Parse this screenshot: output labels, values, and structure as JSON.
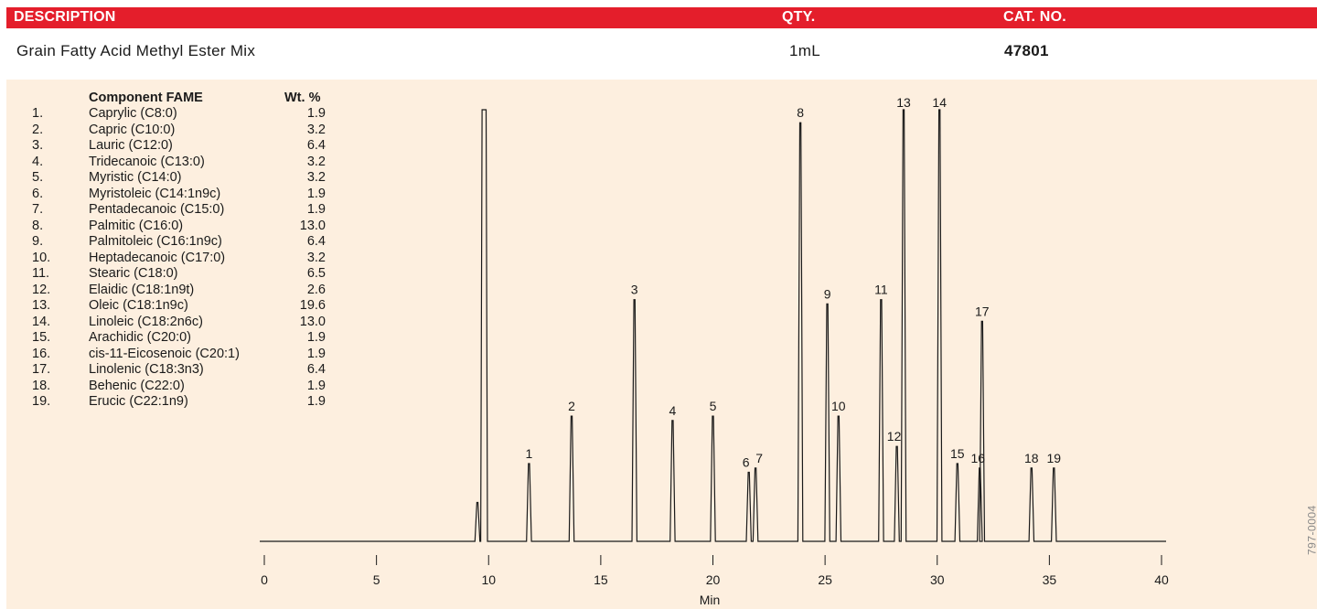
{
  "header": {
    "description_label": "DESCRIPTION",
    "qty_label": "QTY.",
    "cat_label": "CAT. NO.",
    "bg_color": "#e41e2b"
  },
  "product": {
    "description": "Grain Fatty Acid Methyl Ester Mix",
    "qty": "1mL",
    "cat_no": "47801"
  },
  "components_table": {
    "col_name": "Component FAME",
    "col_wt": "Wt. %",
    "rows": [
      {
        "num": "1.",
        "name": "Caprylic (C8:0)",
        "wt": "1.9"
      },
      {
        "num": "2.",
        "name": "Capric (C10:0)",
        "wt": "3.2"
      },
      {
        "num": "3.",
        "name": "Lauric (C12:0)",
        "wt": "6.4"
      },
      {
        "num": "4.",
        "name": "Tridecanoic (C13:0)",
        "wt": "3.2"
      },
      {
        "num": "5.",
        "name": "Myristic (C14:0)",
        "wt": "3.2"
      },
      {
        "num": "6.",
        "name": "Myristoleic (C14:1n9c)",
        "wt": "1.9"
      },
      {
        "num": "7.",
        "name": "Pentadecanoic (C15:0)",
        "wt": "1.9"
      },
      {
        "num": "8.",
        "name": "Palmitic (C16:0)",
        "wt": "13.0"
      },
      {
        "num": "9.",
        "name": "Palmitoleic (C16:1n9c)",
        "wt": "6.4"
      },
      {
        "num": "10.",
        "name": "Heptadecanoic (C17:0)",
        "wt": "3.2"
      },
      {
        "num": "11.",
        "name": "Stearic (C18:0)",
        "wt": "6.5"
      },
      {
        "num": "12.",
        "name": "Elaidic (C18:1n9t)",
        "wt": "2.6"
      },
      {
        "num": "13.",
        "name": "Oleic (C18:1n9c)",
        "wt": "19.6"
      },
      {
        "num": "14.",
        "name": "Linoleic (C18:2n6c)",
        "wt": "13.0"
      },
      {
        "num": "15.",
        "name": "Arachidic (C20:0)",
        "wt": "1.9"
      },
      {
        "num": "16.",
        "name": "cis-11-Eicosenoic (C20:1)",
        "wt": "1.9"
      },
      {
        "num": "17.",
        "name": "Linolenic (C18:3n3)",
        "wt": "6.4"
      },
      {
        "num": "18.",
        "name": "Behenic (C22:0)",
        "wt": "1.9"
      },
      {
        "num": "19.",
        "name": "Erucic (C22:1n9)",
        "wt": "1.9"
      }
    ]
  },
  "figure_code": "797-0004",
  "chart_data": {
    "type": "line",
    "xlabel": "Min",
    "ylabel": "",
    "xlim": [
      0,
      40
    ],
    "xticks": [
      0,
      5,
      10,
      15,
      20,
      25,
      30,
      35,
      40
    ],
    "tick_labels": [
      "0",
      "5",
      "10",
      "15",
      "20",
      "25",
      "30",
      "35",
      "40"
    ],
    "grid": false,
    "panel_color": "#fdefdf",
    "signal_color": "#1a1a1a",
    "solvent_peaks": [
      {
        "rt": 9.5,
        "height": 0.09
      },
      {
        "rt": 9.8,
        "height": 1.0,
        "flat_top": true
      }
    ],
    "peaks": [
      {
        "label": "1",
        "rt": 11.8,
        "height": 0.18
      },
      {
        "label": "2",
        "rt": 13.7,
        "height": 0.29
      },
      {
        "label": "3",
        "rt": 16.5,
        "height": 0.56
      },
      {
        "label": "4",
        "rt": 18.2,
        "height": 0.28
      },
      {
        "label": "5",
        "rt": 20.0,
        "height": 0.29
      },
      {
        "label": "6",
        "rt": 21.6,
        "height": 0.16
      },
      {
        "label": "7",
        "rt": 21.9,
        "height": 0.17
      },
      {
        "label": "8",
        "rt": 23.9,
        "height": 0.97
      },
      {
        "label": "9",
        "rt": 25.1,
        "height": 0.55
      },
      {
        "label": "10",
        "rt": 25.6,
        "height": 0.29
      },
      {
        "label": "11",
        "rt": 27.5,
        "height": 0.56
      },
      {
        "label": "12",
        "rt": 28.2,
        "height": 0.22
      },
      {
        "label": "13",
        "rt": 28.5,
        "height": 1.0
      },
      {
        "label": "14",
        "rt": 30.1,
        "height": 1.0
      },
      {
        "label": "15",
        "rt": 30.9,
        "height": 0.18
      },
      {
        "label": "16",
        "rt": 31.9,
        "height": 0.17
      },
      {
        "label": "17",
        "rt": 32.0,
        "height": 0.51
      },
      {
        "label": "18",
        "rt": 34.2,
        "height": 0.17
      },
      {
        "label": "19",
        "rt": 35.2,
        "height": 0.17
      }
    ]
  }
}
